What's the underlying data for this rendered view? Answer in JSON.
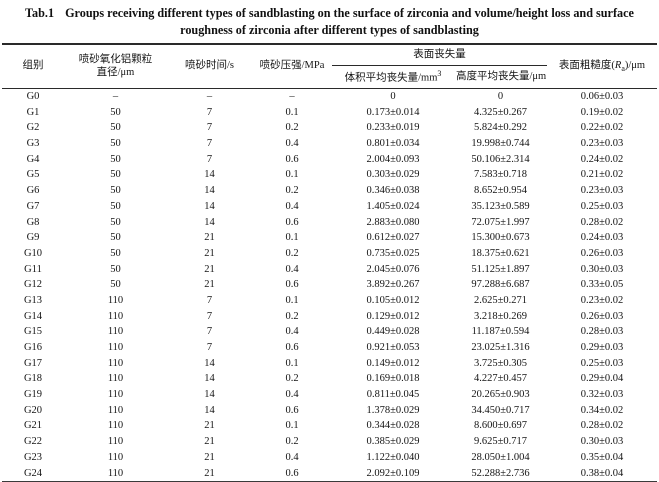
{
  "ink_color": "#1a1a1a",
  "caption": {
    "tag": "Tab.1",
    "line1": "Groups receiving different types of sandblasting on the surface of zirconia and volume/height loss and surface",
    "line2": "roughness of zirconia after different types of sandblasting"
  },
  "table": {
    "header": {
      "group": "组别",
      "particle_line1": "喷砂氧化铝颗粒",
      "particle_line2": "直径/μm",
      "time": "喷砂时间/s",
      "pressure": "喷砂压强/MPa",
      "surface_loss": "表面丧失量",
      "volume_loss_base": "体积平均丧失量/mm",
      "volume_loss_sup": "3",
      "height_loss": "高度平均丧失量/μm",
      "roughness_prefix": "表面粗糙度(",
      "roughness_symbol": "R",
      "roughness_sub": "a",
      "roughness_suffix": ")/μm"
    },
    "rows": [
      [
        "G0",
        "–",
        "–",
        "–",
        "0",
        "0",
        "0.06±0.03"
      ],
      [
        "G1",
        "50",
        "7",
        "0.1",
        "0.173±0.014",
        "4.325±0.267",
        "0.19±0.02"
      ],
      [
        "G2",
        "50",
        "7",
        "0.2",
        "0.233±0.019",
        "5.824±0.292",
        "0.22±0.02"
      ],
      [
        "G3",
        "50",
        "7",
        "0.4",
        "0.801±0.034",
        "19.998±0.744",
        "0.23±0.03"
      ],
      [
        "G4",
        "50",
        "7",
        "0.6",
        "2.004±0.093",
        "50.106±2.314",
        "0.24±0.02"
      ],
      [
        "G5",
        "50",
        "14",
        "0.1",
        "0.303±0.029",
        "7.583±0.718",
        "0.21±0.02"
      ],
      [
        "G6",
        "50",
        "14",
        "0.2",
        "0.346±0.038",
        "8.652±0.954",
        "0.23±0.03"
      ],
      [
        "G7",
        "50",
        "14",
        "0.4",
        "1.405±0.024",
        "35.123±0.589",
        "0.25±0.03"
      ],
      [
        "G8",
        "50",
        "14",
        "0.6",
        "2.883±0.080",
        "72.075±1.997",
        "0.28±0.02"
      ],
      [
        "G9",
        "50",
        "21",
        "0.1",
        "0.612±0.027",
        "15.300±0.673",
        "0.24±0.03"
      ],
      [
        "G10",
        "50",
        "21",
        "0.2",
        "0.735±0.025",
        "18.375±0.621",
        "0.26±0.03"
      ],
      [
        "G11",
        "50",
        "21",
        "0.4",
        "2.045±0.076",
        "51.125±1.897",
        "0.30±0.03"
      ],
      [
        "G12",
        "50",
        "21",
        "0.6",
        "3.892±0.267",
        "97.288±6.687",
        "0.33±0.05"
      ],
      [
        "G13",
        "110",
        "7",
        "0.1",
        "0.105±0.012",
        "2.625±0.271",
        "0.23±0.02"
      ],
      [
        "G14",
        "110",
        "7",
        "0.2",
        "0.129±0.012",
        "3.218±0.269",
        "0.26±0.03"
      ],
      [
        "G15",
        "110",
        "7",
        "0.4",
        "0.449±0.028",
        "11.187±0.594",
        "0.28±0.03"
      ],
      [
        "G16",
        "110",
        "7",
        "0.6",
        "0.921±0.053",
        "23.025±1.316",
        "0.29±0.03"
      ],
      [
        "G17",
        "110",
        "14",
        "0.1",
        "0.149±0.012",
        "3.725±0.305",
        "0.25±0.03"
      ],
      [
        "G18",
        "110",
        "14",
        "0.2",
        "0.169±0.018",
        "4.227±0.457",
        "0.29±0.04"
      ],
      [
        "G19",
        "110",
        "14",
        "0.4",
        "0.811±0.045",
        "20.265±0.903",
        "0.32±0.03"
      ],
      [
        "G20",
        "110",
        "14",
        "0.6",
        "1.378±0.029",
        "34.450±0.717",
        "0.34±0.02"
      ],
      [
        "G21",
        "110",
        "21",
        "0.1",
        "0.344±0.028",
        "8.600±0.697",
        "0.28±0.02"
      ],
      [
        "G22",
        "110",
        "21",
        "0.2",
        "0.385±0.029",
        "9.625±0.717",
        "0.30±0.03"
      ],
      [
        "G23",
        "110",
        "21",
        "0.4",
        "1.122±0.040",
        "28.050±1.004",
        "0.35±0.04"
      ],
      [
        "G24",
        "110",
        "21",
        "0.6",
        "2.092±0.109",
        "52.288±2.736",
        "0.38±0.04"
      ]
    ]
  }
}
